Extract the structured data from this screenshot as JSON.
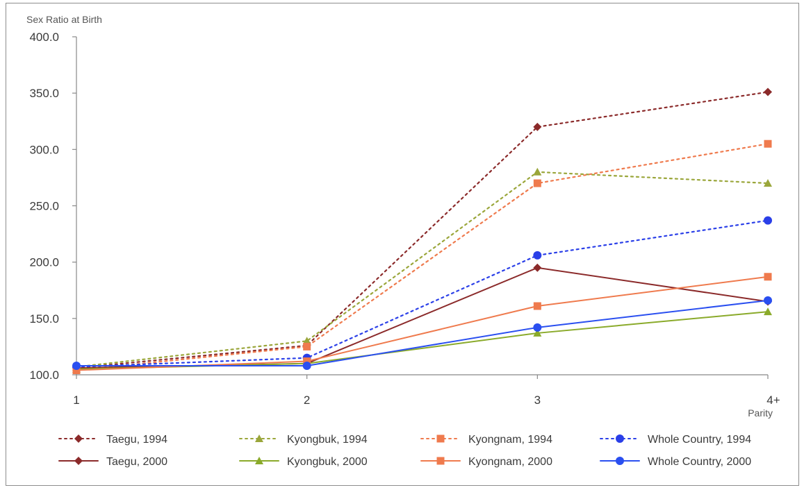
{
  "chart_data": {
    "type": "line",
    "ylabel": "Sex Ratio at Birth",
    "xlabel": "Parity",
    "categories": [
      "1",
      "2",
      "3",
      "4+"
    ],
    "ylim": [
      100,
      400
    ],
    "yticks": [
      "100.0",
      "150.0",
      "200.0",
      "250.0",
      "300.0",
      "350.0",
      "400.0"
    ],
    "grid": false,
    "legend_position": "bottom",
    "series": [
      {
        "name": "Taegu, 1994",
        "values": [
          106,
          126,
          320,
          351
        ],
        "color": "#8b2a2a",
        "marker": "diamond",
        "dash": "dotted"
      },
      {
        "name": "Kyongbuk, 1994",
        "values": [
          107,
          130,
          280,
          270
        ],
        "color": "#9aa63a",
        "marker": "triangle",
        "dash": "dotted"
      },
      {
        "name": "Kyongnam, 1994",
        "values": [
          104,
          125,
          270,
          305
        ],
        "color": "#ef7a4d",
        "marker": "square",
        "dash": "dotted"
      },
      {
        "name": "Whole Country, 1994",
        "values": [
          107,
          115,
          206,
          237
        ],
        "color": "#2a3fe8",
        "marker": "circle",
        "dash": "dotted"
      },
      {
        "name": "Taegu, 2000",
        "values": [
          106,
          110,
          195,
          165
        ],
        "color": "#8b2a2a",
        "marker": "diamond",
        "dash": "solid"
      },
      {
        "name": "Kyongbuk, 2000",
        "values": [
          105,
          110,
          137,
          156
        ],
        "color": "#8aaa2a",
        "marker": "triangle",
        "dash": "solid"
      },
      {
        "name": "Kyongnam, 2000",
        "values": [
          104,
          112,
          161,
          187
        ],
        "color": "#ef7a4d",
        "marker": "square",
        "dash": "solid"
      },
      {
        "name": "Whole Country, 2000",
        "values": [
          108,
          108,
          142,
          166
        ],
        "color": "#2a4ff0",
        "marker": "circle",
        "dash": "solid"
      }
    ]
  }
}
